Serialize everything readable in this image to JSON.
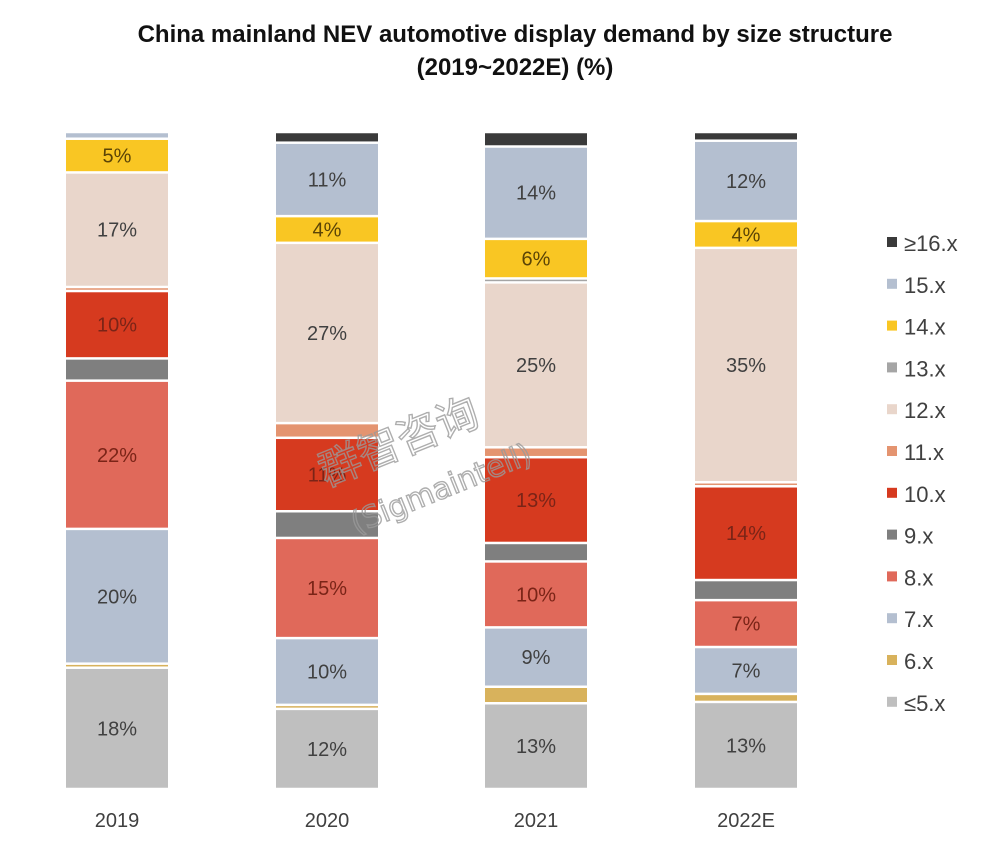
{
  "chart_data": {
    "type": "bar",
    "stacked": true,
    "title": "China mainland NEV automotive display demand by size structure",
    "subtitle": "(2019~2022E) (%)",
    "xlabel": "",
    "ylabel": "",
    "ylim": [
      0,
      100
    ],
    "grid": false,
    "legend_position": "right",
    "categories": [
      "2019",
      "2020",
      "2021",
      "2022E"
    ],
    "series": [
      {
        "name": "≤5.x",
        "color": "#bfbfbf",
        "values": [
          18,
          12,
          13,
          13
        ],
        "labels": [
          "18%",
          "12%",
          "13%",
          "13%"
        ]
      },
      {
        "name": "6.x",
        "color": "#d8b25c",
        "values": [
          0.6,
          0.6,
          2.5,
          1.2
        ],
        "labels": [
          "",
          "",
          "",
          ""
        ]
      },
      {
        "name": "7.x",
        "color": "#b4bfd0",
        "values": [
          20,
          10,
          9,
          7
        ],
        "labels": [
          "20%",
          "10%",
          "9%",
          "7%"
        ]
      },
      {
        "name": "8.x",
        "color": "#e0695a",
        "values": [
          22,
          15,
          10,
          7
        ],
        "labels": [
          "22%",
          "15%",
          "10%",
          "7%"
        ]
      },
      {
        "name": "9.x",
        "color": "#7f7f7f",
        "values": [
          3.3,
          4,
          2.8,
          3
        ],
        "labels": [
          "",
          "",
          "",
          ""
        ]
      },
      {
        "name": "10.x",
        "color": "#d63a1f",
        "values": [
          10,
          11,
          13,
          14
        ],
        "labels": [
          "10%",
          "11%",
          "13%",
          "14%"
        ]
      },
      {
        "name": "11.x",
        "color": "#e49470",
        "values": [
          0.6,
          2.2,
          1.5,
          0.6
        ],
        "labels": [
          "",
          "",
          "",
          ""
        ]
      },
      {
        "name": "12.x",
        "color": "#e9d6cb",
        "values": [
          17,
          27,
          25,
          35
        ],
        "labels": [
          "17%",
          "27%",
          "25%",
          "35%"
        ]
      },
      {
        "name": "13.x",
        "color": "#a5a5a5",
        "values": [
          0,
          0,
          0.6,
          0
        ],
        "labels": [
          "",
          "",
          "",
          ""
        ]
      },
      {
        "name": "14.x",
        "color": "#f9c623",
        "values": [
          5,
          4,
          6,
          4
        ],
        "labels": [
          "5%",
          "4%",
          "6%",
          "4%"
        ]
      },
      {
        "name": "15.x",
        "color": "#b4bfd0",
        "values": [
          1,
          11,
          14,
          12
        ],
        "labels": [
          "",
          "11%",
          "14%",
          "12%"
        ]
      },
      {
        "name": "≥16.x",
        "color": "#3a3a3a",
        "values": [
          0,
          1.6,
          2.2,
          1.3
        ],
        "labels": [
          "",
          "",
          "",
          ""
        ]
      }
    ],
    "legend_order": [
      "≥16.x",
      "15.x",
      "14.x",
      "13.x",
      "12.x",
      "11.x",
      "10.x",
      "9.x",
      "8.x",
      "7.x",
      "6.x",
      "≤5.x"
    ],
    "watermark": {
      "chinese": "群智咨询",
      "latin": "(Sigmaintell)"
    }
  }
}
